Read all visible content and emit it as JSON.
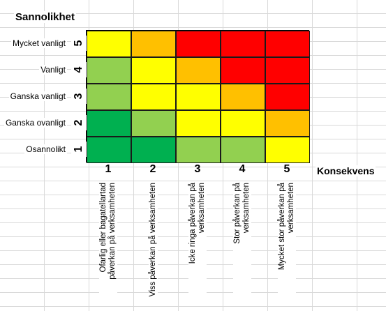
{
  "axis": {
    "y_title": "Sannolikhet",
    "x_title": "Konsekvens"
  },
  "rows": [
    {
      "number": "5",
      "label": "Mycket vanligt"
    },
    {
      "number": "4",
      "label": "Vanligt"
    },
    {
      "number": "3",
      "label": "Ganska vanligt"
    },
    {
      "number": "2",
      "label": "Ganska ovanligt"
    },
    {
      "number": "1",
      "label": "Osannolikt"
    }
  ],
  "columns": [
    {
      "number": "1",
      "line1": "Ofarlig eller bagatellartad",
      "line2": "påverkan på verksamheten"
    },
    {
      "number": "2",
      "line1": "Viss påverkan på verksamheten",
      "line2": ""
    },
    {
      "number": "3",
      "line1": "Icke ringa påverkan på",
      "line2": "verksamheten"
    },
    {
      "number": "4",
      "line1": "Stor påverkan på",
      "line2": "verksamheten"
    },
    {
      "number": "5",
      "line1": "Mycket stor påverkan på",
      "line2": "verksamheten"
    }
  ],
  "palette": {
    "dark_green": "#00b050",
    "light_green": "#92d050",
    "yellow": "#ffff00",
    "orange": "#ffc000",
    "red": "#ff0000"
  },
  "matrix": [
    [
      "yellow",
      "orange",
      "red",
      "red",
      "red"
    ],
    [
      "light_green",
      "yellow",
      "orange",
      "red",
      "red"
    ],
    [
      "light_green",
      "yellow",
      "yellow",
      "orange",
      "red"
    ],
    [
      "dark_green",
      "light_green",
      "yellow",
      "yellow",
      "orange"
    ],
    [
      "dark_green",
      "dark_green",
      "light_green",
      "light_green",
      "yellow"
    ]
  ]
}
